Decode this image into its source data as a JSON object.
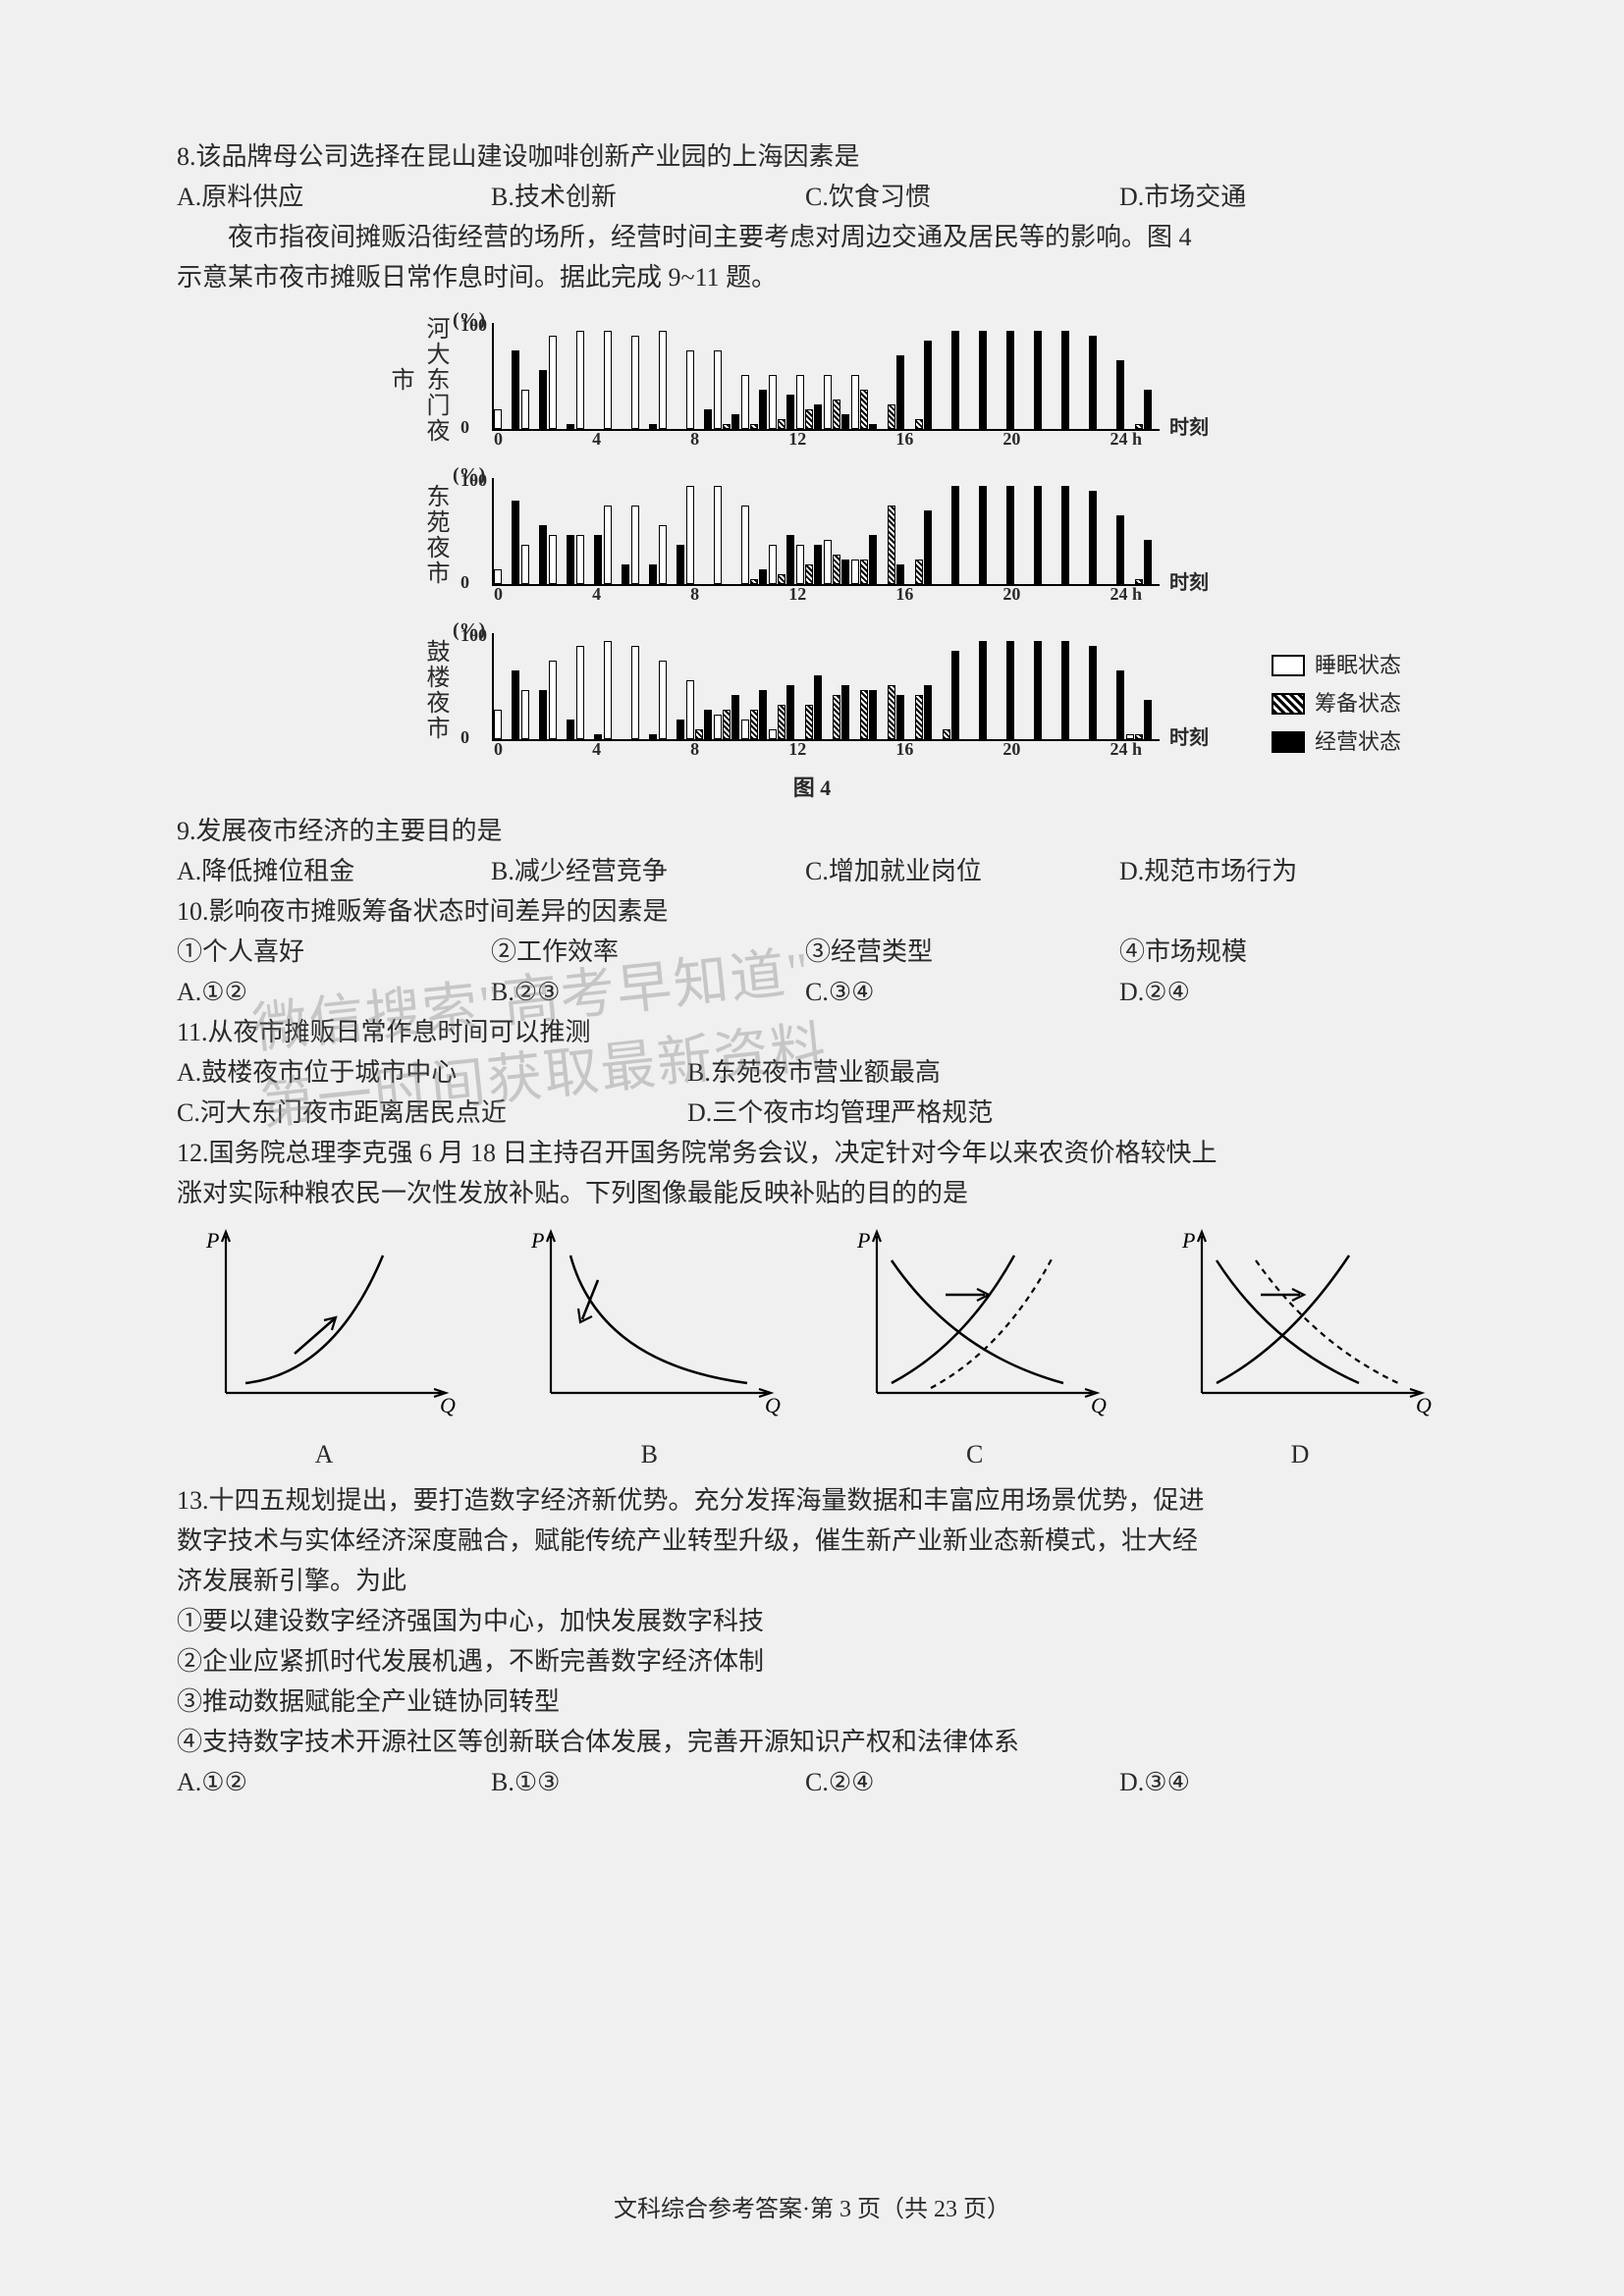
{
  "q8": {
    "stem": "8.该品牌母公司选择在昆山建设咖啡创新产业园的上海因素是",
    "A": "A.原料供应",
    "B": "B.技术创新",
    "C": "C.饮食习惯",
    "D": "D.市场交通"
  },
  "passage_fig4": {
    "p1": "夜市指夜间摊贩沿街经营的场所，经营时间主要考虑对周边交通及居民等的影响。图 4",
    "p2": "示意某市夜市摊贩日常作息时间。据此完成 9~11 题。"
  },
  "fig4": {
    "caption": "图 4",
    "y_unit": "(%)",
    "y_ticks": [
      "100",
      "0"
    ],
    "x_ticks": [
      "0",
      "4",
      "8",
      "12",
      "16",
      "20",
      "24 h"
    ],
    "x_right_label": "时刻",
    "legend": {
      "sleep": "睡眠状态",
      "prep": "筹备状态",
      "open": "经营状态"
    },
    "rows": [
      {
        "label": "河大东门夜市",
        "sleep": [
          20,
          40,
          95,
          100,
          100,
          95,
          100,
          80,
          80,
          55,
          55,
          55,
          55,
          55,
          0,
          0,
          0,
          0,
          0,
          0,
          0,
          0,
          0,
          0
        ],
        "prep": [
          0,
          0,
          0,
          0,
          0,
          0,
          0,
          0,
          5,
          5,
          10,
          20,
          30,
          40,
          25,
          10,
          0,
          0,
          0,
          0,
          0,
          0,
          0,
          5
        ],
        "open": [
          80,
          60,
          5,
          0,
          0,
          5,
          0,
          20,
          15,
          40,
          35,
          25,
          15,
          5,
          75,
          90,
          100,
          100,
          100,
          100,
          100,
          95,
          70,
          40
        ]
      },
      {
        "label": "东苑夜市",
        "sleep": [
          15,
          40,
          50,
          50,
          80,
          80,
          60,
          100,
          100,
          80,
          40,
          40,
          45,
          25,
          0,
          0,
          0,
          0,
          0,
          0,
          0,
          0,
          0,
          0
        ],
        "prep": [
          0,
          0,
          0,
          0,
          0,
          0,
          0,
          0,
          0,
          5,
          10,
          20,
          30,
          25,
          80,
          25,
          0,
          0,
          0,
          0,
          0,
          0,
          0,
          5
        ],
        "open": [
          85,
          60,
          50,
          50,
          20,
          20,
          40,
          0,
          0,
          15,
          50,
          40,
          25,
          50,
          20,
          75,
          100,
          100,
          100,
          100,
          100,
          95,
          70,
          45
        ]
      },
      {
        "label": "鼓楼夜市",
        "sleep": [
          30,
          50,
          80,
          95,
          100,
          95,
          80,
          60,
          25,
          20,
          10,
          0,
          0,
          0,
          0,
          0,
          0,
          0,
          0,
          0,
          0,
          0,
          0,
          5
        ],
        "prep": [
          0,
          0,
          0,
          0,
          0,
          0,
          0,
          10,
          30,
          30,
          35,
          35,
          45,
          50,
          55,
          45,
          10,
          0,
          0,
          0,
          0,
          0,
          0,
          5
        ],
        "open": [
          70,
          50,
          20,
          5,
          0,
          5,
          20,
          30,
          45,
          50,
          55,
          65,
          55,
          50,
          45,
          55,
          90,
          100,
          100,
          100,
          100,
          95,
          70,
          40
        ]
      }
    ],
    "colors": {
      "sleep": "#ffffff",
      "prep_stripe_dark": "#000000",
      "open": "#000000",
      "axis": "#000000",
      "bg": "#ffffff"
    }
  },
  "q9": {
    "stem": "9.发展夜市经济的主要目的是",
    "A": "A.降低摊位租金",
    "B": "B.减少经营竞争",
    "C": "C.增加就业岗位",
    "D": "D.规范市场行为"
  },
  "q10": {
    "stem": "10.影响夜市摊贩筹备状态时间差异的因素是",
    "i1": "①个人喜好",
    "i2": "②工作效率",
    "i3": "③经营类型",
    "i4": "④市场规模",
    "A": "A.①②",
    "B": "B.②③",
    "C": "C.③④",
    "D": "D.②④"
  },
  "q11": {
    "stem": "11.从夜市摊贩日常作息时间可以推测",
    "A": "A.鼓楼夜市位于城市中心",
    "B": "B.东苑夜市营业额最高",
    "C": "C.河大东门夜市距离居民点近",
    "D": "D.三个夜市均管理严格规范"
  },
  "q12": {
    "p1": "12.国务院总理李克强 6 月 18 日主持召开国务院常务会议，决定针对今年以来农资价格较快上",
    "p2": "涨对实际种粮农民一次性发放补贴。下列图像最能反映补贴的目的的是",
    "axis_P": "P",
    "axis_Q": "Q",
    "labels": {
      "A": "A",
      "B": "B",
      "C": "C",
      "D": "D"
    },
    "style": {
      "axis_color": "#000000",
      "solid_color": "#000000",
      "dash_pattern": "6,5",
      "line_width": 2.2,
      "font_size_axis": 22
    }
  },
  "q13": {
    "p1": "13.十四五规划提出，要打造数字经济新优势。充分发挥海量数据和丰富应用场景优势，促进",
    "p2": "数字技术与实体经济深度融合，赋能传统产业转型升级，催生新产业新业态新模式，壮大经",
    "p3": "济发展新引擎。为此",
    "i1": "①要以建设数字经济强国为中心，加快发展数字科技",
    "i2": "②企业应紧抓时代发展机遇，不断完善数字经济体制",
    "i3": "③推动数据赋能全产业链协同转型",
    "i4": "④支持数字技术开源社区等创新联合体发展，完善开源知识产权和法律体系",
    "A": "A.①②",
    "B": "B.①③",
    "C": "C.②④",
    "D": "D.③④"
  },
  "watermark": {
    "l1": "微信搜索\"高考早知道\"",
    "l2": "第一时间获取最新资料"
  },
  "footer": "文科综合参考答案·第 3 页（共 23 页）"
}
